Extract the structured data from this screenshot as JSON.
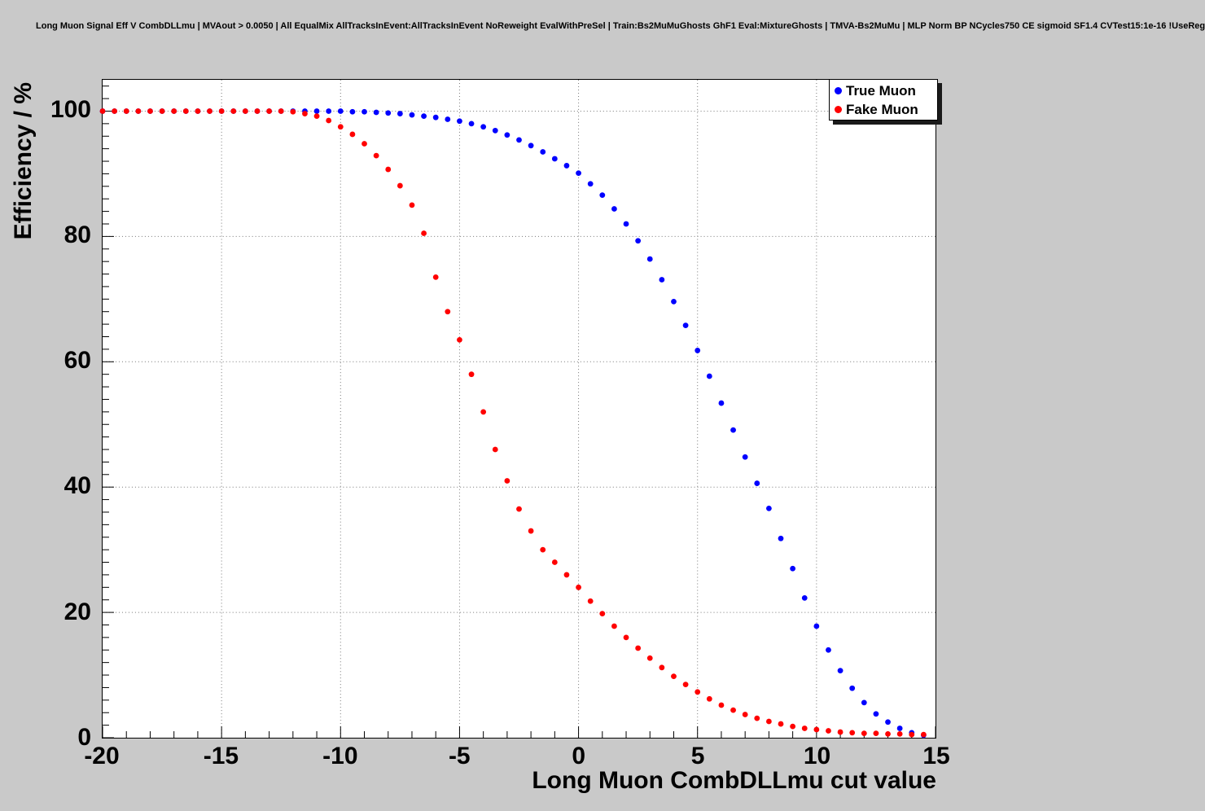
{
  "header": {
    "note": ""
  },
  "chart_data": {
    "type": "scatter",
    "title": "Long Muon Signal Eff V CombDLLmu | MVAout > 0.0050 | All EqualMix AllTracksInEvent:AllTracksInEvent NoReweight EvalWithPreSel | Train:Bs2MuMuGhosts GhF1 Eval:MixtureGhosts | TMVA-Bs2MuMu | MLP Norm BP NCycles750 CE sigmoid SF1.4 CVTest15:1e-16 !UseReg",
    "xlabel": "Long Muon CombDLLmu cut value",
    "ylabel": "Efficiency / %",
    "xlim": [
      -20,
      15
    ],
    "ylim": [
      0,
      105
    ],
    "xticks": [
      -20,
      -15,
      -10,
      -5,
      0,
      5,
      10,
      15
    ],
    "yticks": [
      0,
      20,
      40,
      60,
      80,
      100
    ],
    "grid": true,
    "legend_position": "top-right",
    "marker": "dot",
    "x": [
      -20,
      -19.5,
      -19,
      -18.5,
      -18,
      -17.5,
      -17,
      -16.5,
      -16,
      -15.5,
      -15,
      -14.5,
      -14,
      -13.5,
      -13,
      -12.5,
      -12,
      -11.5,
      -11,
      -10.5,
      -10,
      -9.5,
      -9,
      -8.5,
      -8,
      -7.5,
      -7,
      -6.5,
      -6,
      -5.5,
      -5,
      -4.5,
      -4,
      -3.5,
      -3,
      -2.5,
      -2,
      -1.5,
      -1,
      -0.5,
      0,
      0.5,
      1,
      1.5,
      2,
      2.5,
      3,
      3.5,
      4,
      4.5,
      5,
      5.5,
      6,
      6.5,
      7,
      7.5,
      8,
      8.5,
      9,
      9.5,
      10,
      10.5,
      11,
      11.5,
      12,
      12.5,
      13,
      13.5,
      14,
      14.5
    ],
    "series": [
      {
        "name": "True Muon",
        "color": "#0000ff",
        "values": [
          100,
          100,
          100,
          100,
          100,
          100,
          100,
          100,
          100,
          100,
          100,
          100,
          100,
          100,
          100,
          100,
          100,
          100,
          100,
          100,
          100,
          99.9,
          99.9,
          99.8,
          99.7,
          99.6,
          99.4,
          99.2,
          99.0,
          98.7,
          98.4,
          98.0,
          97.5,
          96.9,
          96.2,
          95.4,
          94.5,
          93.5,
          92.4,
          91.3,
          90.1,
          88.4,
          86.6,
          84.4,
          82.0,
          79.3,
          76.4,
          73.1,
          69.6,
          65.8,
          61.8,
          57.7,
          53.4,
          49.1,
          44.8,
          40.6,
          36.6,
          31.8,
          27.0,
          22.3,
          17.8,
          14.0,
          10.7,
          7.9,
          5.6,
          3.8,
          2.5,
          1.5,
          0.8,
          0.4
        ]
      },
      {
        "name": "Fake Muon",
        "color": "#ff0000",
        "values": [
          100,
          100,
          100,
          100,
          100,
          100,
          100,
          100,
          100,
          100,
          100,
          100,
          100,
          100,
          100,
          100,
          99.9,
          99.6,
          99.2,
          98.5,
          97.5,
          96.3,
          94.8,
          92.9,
          90.7,
          88.1,
          85.0,
          80.5,
          73.5,
          68.0,
          63.5,
          58.0,
          52.0,
          46.0,
          41.0,
          36.5,
          33.0,
          30.0,
          28.0,
          26.0,
          24.0,
          21.8,
          19.8,
          17.8,
          16.0,
          14.3,
          12.7,
          11.2,
          9.8,
          8.5,
          7.3,
          6.2,
          5.2,
          4.4,
          3.7,
          3.1,
          2.6,
          2.2,
          1.8,
          1.5,
          1.3,
          1.1,
          0.9,
          0.8,
          0.7,
          0.7,
          0.6,
          0.6,
          0.5,
          0.5
        ]
      }
    ]
  }
}
